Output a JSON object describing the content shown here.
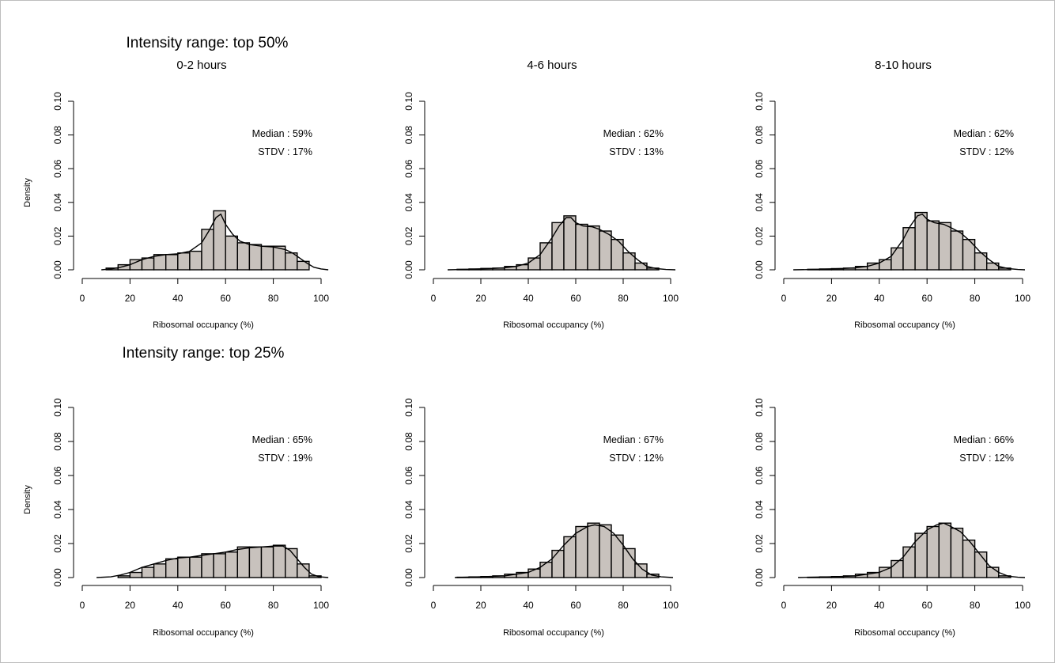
{
  "sections": [
    {
      "title": "Intensity range: top 50%"
    },
    {
      "title": "Intensity range: top 25%"
    }
  ],
  "chart_data": [
    {
      "type": "histogram",
      "section": "Intensity range: top 50%",
      "title": "0-2 hours",
      "xlabel": "Ribosomal occupancy (%)",
      "ylabel": "Density",
      "xlim": [
        0,
        100
      ],
      "ylim": [
        0,
        0.1
      ],
      "xticks": [
        "0",
        "20",
        "40",
        "60",
        "80",
        "100"
      ],
      "yticks": [
        "0.00",
        "0.02",
        "0.04",
        "0.06",
        "0.08",
        "0.10"
      ],
      "annotations": [
        "Median : 59%",
        "STDV : 17%"
      ],
      "bin_width": 5,
      "bins": [
        [
          10,
          15,
          0.001
        ],
        [
          15,
          20,
          0.003
        ],
        [
          20,
          25,
          0.006
        ],
        [
          25,
          30,
          0.007
        ],
        [
          30,
          35,
          0.009
        ],
        [
          35,
          40,
          0.009
        ],
        [
          40,
          45,
          0.01
        ],
        [
          45,
          50,
          0.011
        ],
        [
          50,
          55,
          0.024
        ],
        [
          55,
          60,
          0.035
        ],
        [
          60,
          65,
          0.02
        ],
        [
          65,
          70,
          0.016
        ],
        [
          70,
          75,
          0.015
        ],
        [
          75,
          80,
          0.014
        ],
        [
          80,
          85,
          0.014
        ],
        [
          85,
          90,
          0.01
        ],
        [
          90,
          95,
          0.005
        ]
      ],
      "density_x": [
        8,
        12,
        16,
        20,
        25,
        30,
        35,
        40,
        45,
        50,
        53,
        56,
        58,
        60,
        63,
        66,
        70,
        75,
        80,
        85,
        88,
        91,
        94,
        97,
        100,
        103
      ],
      "density_y": [
        0,
        0.0005,
        0.0015,
        0.003,
        0.006,
        0.008,
        0.009,
        0.0095,
        0.011,
        0.016,
        0.023,
        0.031,
        0.033,
        0.027,
        0.021,
        0.017,
        0.015,
        0.014,
        0.0135,
        0.012,
        0.01,
        0.007,
        0.004,
        0.0015,
        0.0005,
        0
      ]
    },
    {
      "type": "histogram",
      "section": "Intensity range: top 50%",
      "title": "4-6 hours",
      "xlabel": "Ribosomal occupancy (%)",
      "ylabel": "",
      "xlim": [
        0,
        100
      ],
      "ylim": [
        0,
        0.1
      ],
      "xticks": [
        "0",
        "20",
        "40",
        "60",
        "80",
        "100"
      ],
      "yticks": [
        "0.00",
        "0.02",
        "0.04",
        "0.06",
        "0.08",
        "0.10"
      ],
      "annotations": [
        "Median : 62%",
        "STDV : 13%"
      ],
      "bin_width": 5,
      "bins": [
        [
          10,
          15,
          0.0003
        ],
        [
          15,
          20,
          0.0005
        ],
        [
          20,
          25,
          0.0008
        ],
        [
          25,
          30,
          0.001
        ],
        [
          30,
          35,
          0.002
        ],
        [
          35,
          40,
          0.003
        ],
        [
          40,
          45,
          0.007
        ],
        [
          45,
          50,
          0.016
        ],
        [
          50,
          55,
          0.028
        ],
        [
          55,
          60,
          0.032
        ],
        [
          60,
          65,
          0.027
        ],
        [
          65,
          70,
          0.026
        ],
        [
          70,
          75,
          0.023
        ],
        [
          75,
          80,
          0.018
        ],
        [
          80,
          85,
          0.01
        ],
        [
          85,
          90,
          0.004
        ],
        [
          90,
          95,
          0.001
        ]
      ],
      "density_x": [
        6,
        15,
        25,
        30,
        35,
        40,
        45,
        50,
        53,
        56,
        58,
        60,
        63,
        67,
        70,
        74,
        78,
        82,
        86,
        90,
        94,
        98,
        102
      ],
      "density_y": [
        0,
        0.0003,
        0.0008,
        0.0012,
        0.002,
        0.004,
        0.009,
        0.019,
        0.026,
        0.031,
        0.031,
        0.028,
        0.026,
        0.0255,
        0.024,
        0.021,
        0.017,
        0.011,
        0.006,
        0.002,
        0.0007,
        0.0002,
        0
      ]
    },
    {
      "type": "histogram",
      "section": "Intensity range: top 50%",
      "title": "8-10 hours",
      "xlabel": "Ribosomal occupancy (%)",
      "ylabel": "",
      "xlim": [
        0,
        100
      ],
      "ylim": [
        0,
        0.1
      ],
      "xticks": [
        "0",
        "20",
        "40",
        "60",
        "80",
        "100"
      ],
      "yticks": [
        "0.00",
        "0.02",
        "0.04",
        "0.06",
        "0.08",
        "0.10"
      ],
      "annotations": [
        "Median : 62%",
        "STDV : 12%"
      ],
      "bin_width": 5,
      "bins": [
        [
          10,
          15,
          0.0003
        ],
        [
          15,
          20,
          0.0005
        ],
        [
          20,
          25,
          0.0007
        ],
        [
          25,
          30,
          0.001
        ],
        [
          30,
          35,
          0.002
        ],
        [
          35,
          40,
          0.004
        ],
        [
          40,
          45,
          0.006
        ],
        [
          45,
          50,
          0.013
        ],
        [
          50,
          55,
          0.025
        ],
        [
          55,
          60,
          0.034
        ],
        [
          60,
          65,
          0.029
        ],
        [
          65,
          70,
          0.028
        ],
        [
          70,
          75,
          0.023
        ],
        [
          75,
          80,
          0.018
        ],
        [
          80,
          85,
          0.01
        ],
        [
          85,
          90,
          0.004
        ],
        [
          90,
          95,
          0.001
        ]
      ],
      "density_x": [
        4,
        15,
        25,
        30,
        35,
        40,
        45,
        50,
        53,
        56,
        58,
        60,
        63,
        67,
        70,
        74,
        78,
        82,
        86,
        90,
        94,
        98,
        101
      ],
      "density_y": [
        0,
        0.0003,
        0.0008,
        0.0012,
        0.002,
        0.004,
        0.008,
        0.018,
        0.026,
        0.032,
        0.033,
        0.03,
        0.028,
        0.027,
        0.025,
        0.022,
        0.017,
        0.011,
        0.006,
        0.002,
        0.0007,
        0.0002,
        0
      ]
    },
    {
      "type": "histogram",
      "section": "Intensity range: top 25%",
      "title": "",
      "xlabel": "Ribosomal occupancy (%)",
      "ylabel": "Density",
      "xlim": [
        0,
        100
      ],
      "ylim": [
        0,
        0.1
      ],
      "xticks": [
        "0",
        "20",
        "40",
        "60",
        "80",
        "100"
      ],
      "yticks": [
        "0.00",
        "0.02",
        "0.04",
        "0.06",
        "0.08",
        "0.10"
      ],
      "annotations": [
        "Median : 65%",
        "STDV : 19%"
      ],
      "bin_width": 5,
      "bins": [
        [
          15,
          20,
          0.001
        ],
        [
          20,
          25,
          0.003
        ],
        [
          25,
          30,
          0.006
        ],
        [
          30,
          35,
          0.008
        ],
        [
          35,
          40,
          0.011
        ],
        [
          40,
          45,
          0.012
        ],
        [
          45,
          50,
          0.012
        ],
        [
          50,
          55,
          0.014
        ],
        [
          55,
          60,
          0.014
        ],
        [
          60,
          65,
          0.015
        ],
        [
          65,
          70,
          0.018
        ],
        [
          70,
          75,
          0.018
        ],
        [
          75,
          80,
          0.018
        ],
        [
          80,
          85,
          0.019
        ],
        [
          85,
          90,
          0.017
        ],
        [
          90,
          95,
          0.008
        ],
        [
          95,
          100,
          0.001
        ]
      ],
      "density_x": [
        6,
        12,
        16,
        20,
        25,
        30,
        35,
        40,
        45,
        50,
        55,
        60,
        65,
        70,
        75,
        80,
        84,
        87,
        90,
        93,
        96,
        99,
        103
      ],
      "density_y": [
        0,
        0.0004,
        0.0015,
        0.003,
        0.006,
        0.008,
        0.01,
        0.0115,
        0.012,
        0.013,
        0.014,
        0.015,
        0.0165,
        0.0175,
        0.018,
        0.0185,
        0.0185,
        0.016,
        0.011,
        0.006,
        0.002,
        0.0005,
        0
      ]
    },
    {
      "type": "histogram",
      "section": "Intensity range: top 25%",
      "title": "",
      "xlabel": "Ribosomal occupancy (%)",
      "ylabel": "",
      "xlim": [
        0,
        100
      ],
      "ylim": [
        0,
        0.1
      ],
      "xticks": [
        "0",
        "20",
        "40",
        "60",
        "80",
        "100"
      ],
      "yticks": [
        "0.00",
        "0.02",
        "0.04",
        "0.06",
        "0.08",
        "0.10"
      ],
      "annotations": [
        "Median : 67%",
        "STDV : 12%"
      ],
      "bin_width": 5,
      "bins": [
        [
          10,
          15,
          0.0002
        ],
        [
          15,
          20,
          0.0004
        ],
        [
          20,
          25,
          0.0006
        ],
        [
          25,
          30,
          0.001
        ],
        [
          30,
          35,
          0.002
        ],
        [
          35,
          40,
          0.003
        ],
        [
          40,
          45,
          0.005
        ],
        [
          45,
          50,
          0.009
        ],
        [
          50,
          55,
          0.016
        ],
        [
          55,
          60,
          0.024
        ],
        [
          60,
          65,
          0.03
        ],
        [
          65,
          70,
          0.032
        ],
        [
          70,
          75,
          0.031
        ],
        [
          75,
          80,
          0.025
        ],
        [
          80,
          85,
          0.017
        ],
        [
          85,
          90,
          0.008
        ],
        [
          90,
          95,
          0.002
        ]
      ],
      "density_x": [
        9,
        20,
        30,
        35,
        40,
        45,
        50,
        55,
        60,
        65,
        68,
        72,
        76,
        80,
        84,
        88,
        92,
        96,
        101
      ],
      "density_y": [
        0,
        0.0004,
        0.001,
        0.002,
        0.003,
        0.006,
        0.011,
        0.019,
        0.026,
        0.03,
        0.031,
        0.03,
        0.026,
        0.019,
        0.011,
        0.005,
        0.0015,
        0.0004,
        0
      ]
    },
    {
      "type": "histogram",
      "section": "Intensity range: top 25%",
      "title": "",
      "xlabel": "Ribosomal occupancy (%)",
      "ylabel": "",
      "xlim": [
        0,
        100
      ],
      "ylim": [
        0,
        0.1
      ],
      "xticks": [
        "0",
        "20",
        "40",
        "60",
        "80",
        "100"
      ],
      "yticks": [
        "0.00",
        "0.02",
        "0.04",
        "0.06",
        "0.08",
        "0.10"
      ],
      "annotations": [
        "Median : 66%",
        "STDV : 12%"
      ],
      "bin_width": 5,
      "bins": [
        [
          10,
          15,
          0.0002
        ],
        [
          15,
          20,
          0.0004
        ],
        [
          20,
          25,
          0.0006
        ],
        [
          25,
          30,
          0.001
        ],
        [
          30,
          35,
          0.002
        ],
        [
          35,
          40,
          0.003
        ],
        [
          40,
          45,
          0.006
        ],
        [
          45,
          50,
          0.01
        ],
        [
          50,
          55,
          0.018
        ],
        [
          55,
          60,
          0.026
        ],
        [
          60,
          65,
          0.03
        ],
        [
          65,
          70,
          0.032
        ],
        [
          70,
          75,
          0.029
        ],
        [
          75,
          80,
          0.022
        ],
        [
          80,
          85,
          0.015
        ],
        [
          85,
          90,
          0.006
        ],
        [
          90,
          95,
          0.001
        ]
      ],
      "density_x": [
        6,
        20,
        30,
        35,
        40,
        45,
        50,
        55,
        60,
        64,
        67,
        70,
        74,
        78,
        82,
        86,
        90,
        94,
        98,
        101
      ],
      "density_y": [
        0,
        0.0004,
        0.001,
        0.002,
        0.003,
        0.006,
        0.012,
        0.021,
        0.028,
        0.031,
        0.032,
        0.03,
        0.027,
        0.021,
        0.014,
        0.007,
        0.003,
        0.0008,
        0.0002,
        0
      ]
    }
  ]
}
